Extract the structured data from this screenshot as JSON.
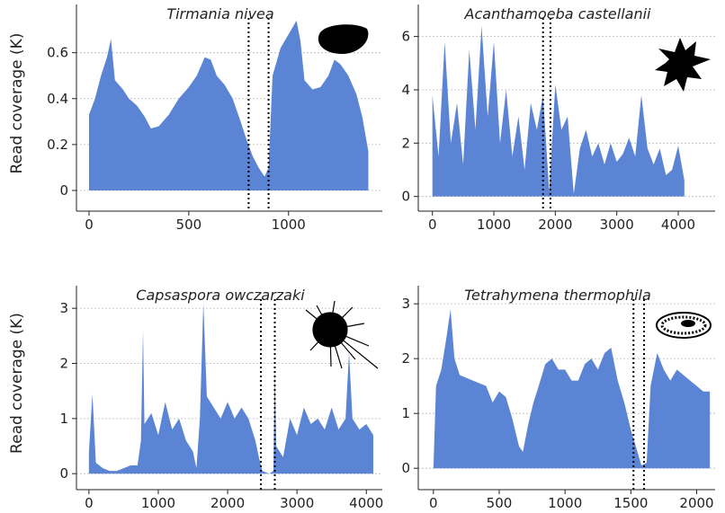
{
  "chart_data": [
    {
      "type": "area",
      "title": "Tirmania nivea",
      "ylabel": "Read coverage (K)",
      "color": "#5b84d4",
      "grid": true,
      "x": [
        0,
        30,
        60,
        90,
        110,
        130,
        170,
        200,
        240,
        280,
        310,
        350,
        400,
        450,
        500,
        540,
        580,
        610,
        640,
        680,
        720,
        760,
        790,
        820,
        850,
        880,
        900,
        920,
        960,
        1000,
        1040,
        1060,
        1080,
        1120,
        1160,
        1200,
        1230,
        1260,
        1300,
        1340,
        1370,
        1400
      ],
      "values": [
        0.33,
        0.4,
        0.5,
        0.58,
        0.66,
        0.48,
        0.44,
        0.4,
        0.37,
        0.32,
        0.27,
        0.28,
        0.33,
        0.4,
        0.45,
        0.5,
        0.58,
        0.57,
        0.5,
        0.46,
        0.4,
        0.3,
        0.22,
        0.15,
        0.1,
        0.06,
        0.1,
        0.5,
        0.62,
        0.68,
        0.74,
        0.65,
        0.48,
        0.44,
        0.45,
        0.5,
        0.57,
        0.55,
        0.5,
        0.42,
        0.32,
        0.17
      ],
      "xlim": [
        -63,
        1470
      ],
      "ylim": [
        -0.09,
        0.81
      ],
      "xticks": [
        0,
        500,
        1000
      ],
      "yticks": [
        0,
        0.2,
        0.4,
        0.6
      ],
      "vlines": [
        800,
        900
      ]
    },
    {
      "type": "area",
      "title": "Acanthamoeba castellanii",
      "color": "#5b84d4",
      "grid": true,
      "x": [
        0,
        100,
        200,
        300,
        400,
        500,
        600,
        700,
        800,
        900,
        1000,
        1100,
        1200,
        1300,
        1400,
        1500,
        1600,
        1700,
        1800,
        1900,
        2000,
        2100,
        2200,
        2300,
        2400,
        2500,
        2600,
        2700,
        2800,
        2900,
        3000,
        3100,
        3200,
        3300,
        3400,
        3500,
        3600,
        3700,
        3800,
        3900,
        4000,
        4100
      ],
      "values": [
        3.8,
        1.5,
        5.8,
        2.0,
        3.5,
        1.2,
        5.5,
        2.5,
        6.4,
        3.0,
        5.8,
        2.0,
        4.0,
        1.5,
        3.0,
        1.0,
        3.5,
        2.5,
        3.8,
        0.2,
        4.2,
        2.5,
        3.0,
        0.1,
        1.8,
        2.5,
        1.5,
        2.0,
        1.2,
        2.0,
        1.3,
        1.6,
        2.2,
        1.5,
        3.8,
        1.8,
        1.2,
        1.8,
        0.8,
        1.0,
        1.9,
        0.6
      ],
      "xlim": [
        -230,
        4600
      ],
      "ylim": [
        -0.55,
        7.2
      ],
      "xticks": [
        0,
        1000,
        2000,
        3000,
        4000
      ],
      "yticks": [
        0,
        2,
        4,
        6
      ],
      "vlines": [
        1800,
        1920
      ]
    },
    {
      "type": "area",
      "title": "Capsaspora owczarzaki",
      "ylabel": "Read coverage (K)",
      "color": "#5b84d4",
      "grid": true,
      "x": [
        0,
        50,
        100,
        200,
        300,
        400,
        500,
        600,
        700,
        750,
        780,
        800,
        900,
        1000,
        1100,
        1200,
        1300,
        1400,
        1500,
        1550,
        1600,
        1650,
        1700,
        1800,
        1900,
        2000,
        2100,
        2200,
        2300,
        2400,
        2450,
        2500,
        2600,
        2660,
        2680,
        2700,
        2800,
        2900,
        3000,
        3100,
        3200,
        3300,
        3400,
        3500,
        3600,
        3700,
        3750,
        3800,
        3900,
        4000,
        4100
      ],
      "values": [
        0.4,
        1.45,
        0.2,
        0.1,
        0.05,
        0.05,
        0.1,
        0.15,
        0.15,
        0.6,
        2.6,
        0.9,
        1.1,
        0.7,
        1.3,
        0.8,
        1.0,
        0.6,
        0.4,
        0.1,
        1.0,
        3.1,
        1.4,
        1.2,
        1.0,
        1.3,
        1.0,
        1.2,
        1.0,
        0.6,
        0.3,
        0.05,
        0.0,
        0.05,
        1.9,
        0.5,
        0.3,
        1.0,
        0.7,
        1.2,
        0.9,
        1.0,
        0.8,
        1.2,
        0.8,
        1.0,
        2.2,
        1.0,
        0.8,
        0.9,
        0.7
      ],
      "xlim": [
        -180,
        4230
      ],
      "ylim": [
        -0.29,
        3.41
      ],
      "xticks": [
        0,
        1000,
        2000,
        3000,
        4000
      ],
      "yticks": [
        0,
        1,
        2,
        3
      ],
      "vlines": [
        2480,
        2680
      ]
    },
    {
      "type": "area",
      "title": "Tetrahymena thermophila",
      "color": "#5b84d4",
      "grid": true,
      "x": [
        0,
        20,
        60,
        100,
        130,
        160,
        200,
        300,
        400,
        450,
        500,
        550,
        600,
        650,
        680,
        720,
        760,
        800,
        850,
        900,
        950,
        1000,
        1050,
        1100,
        1150,
        1200,
        1250,
        1300,
        1350,
        1400,
        1450,
        1500,
        1550,
        1580,
        1620,
        1650,
        1700,
        1750,
        1800,
        1850,
        1900,
        1950,
        2000,
        2050,
        2100
      ],
      "values": [
        0,
        1.5,
        1.8,
        2.4,
        2.9,
        2.0,
        1.7,
        1.6,
        1.5,
        1.2,
        1.4,
        1.3,
        0.9,
        0.4,
        0.3,
        0.8,
        1.2,
        1.5,
        1.9,
        2.0,
        1.8,
        1.8,
        1.6,
        1.6,
        1.9,
        2.0,
        1.8,
        2.1,
        2.2,
        1.6,
        1.2,
        0.7,
        0.3,
        0.05,
        0.1,
        1.5,
        2.1,
        1.8,
        1.6,
        1.8,
        1.7,
        1.6,
        1.5,
        1.4,
        1.4
      ],
      "xlim": [
        -115,
        2140
      ],
      "ylim": [
        -0.39,
        3.33
      ],
      "xticks": [
        0,
        500,
        1000,
        1500,
        2000
      ],
      "yticks": [
        0,
        1,
        2,
        3
      ],
      "vlines": [
        1520,
        1600
      ]
    }
  ]
}
